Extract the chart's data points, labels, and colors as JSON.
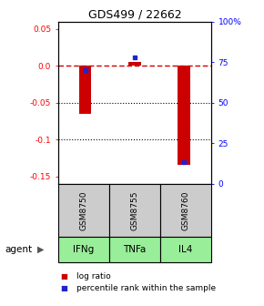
{
  "title": "GDS499 / 22662",
  "categories": [
    "IFNg",
    "TNFa",
    "IL4"
  ],
  "gsm_labels": [
    "GSM8750",
    "GSM8755",
    "GSM8760"
  ],
  "log_ratios": [
    -0.065,
    0.005,
    -0.135
  ],
  "percentile_ranks": [
    0.7,
    0.78,
    0.13
  ],
  "ylim_left": [
    -0.16,
    0.06
  ],
  "yticks_left": [
    0.05,
    0.0,
    -0.05,
    -0.1,
    -0.15
  ],
  "yticks_right_vals": [
    1.0,
    0.75,
    0.5,
    0.25,
    0.0
  ],
  "yticks_right_labels": [
    "100%",
    "75",
    "50",
    "25",
    "0"
  ],
  "bar_color": "#cc0000",
  "percentile_color": "#2222cc",
  "gsm_bg_color": "#cccccc",
  "agent_bg_color": "#99ee99",
  "legend_bar_label": "log ratio",
  "legend_pct_label": "percentile rank within the sample",
  "bar_width": 0.25,
  "agent_label": "agent",
  "background_color": "#ffffff",
  "title_fontsize": 9
}
